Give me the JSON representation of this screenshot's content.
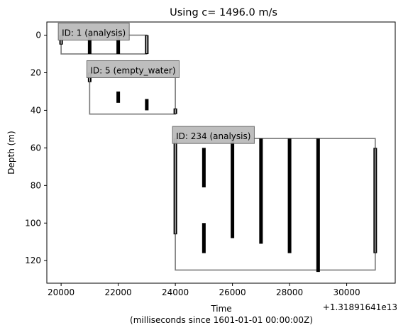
{
  "chart_data": {
    "type": "scatter",
    "title": "Using c= 1496.0 m/s",
    "xlabel": "Time",
    "xlabel_line2": "(milliseconds since 1601-01-01 00:00:00Z)",
    "x_offset_label": "+1.31891641e13",
    "ylabel": "Depth (m)",
    "xlim": [
      19500,
      31700
    ],
    "ylim": [
      132,
      -7
    ],
    "y_inverted": true,
    "grid": false,
    "x_ticks": [
      20000,
      22000,
      24000,
      26000,
      28000,
      30000
    ],
    "x_tick_labels": [
      "20000",
      "22000",
      "24000",
      "26000",
      "28000",
      "30000"
    ],
    "y_ticks": [
      0,
      20,
      40,
      60,
      80,
      100,
      120
    ],
    "y_tick_labels": [
      "0",
      "20",
      "40",
      "60",
      "80",
      "100",
      "120"
    ],
    "regions": [
      {
        "label": "ID: 1 (analysis)",
        "x_start": 20000,
        "x_end": 23000,
        "depth_top": 0,
        "depth_bottom": 10,
        "pings": [
          {
            "x": 20000,
            "depth_top": 0,
            "depth_bottom": 5
          },
          {
            "x": 21000,
            "depth_top": 0,
            "depth_bottom": 10
          },
          {
            "x": 22000,
            "depth_top": 0,
            "depth_bottom": 10
          },
          {
            "x": 23000,
            "depth_top": 0,
            "depth_bottom": 10
          }
        ]
      },
      {
        "label": "ID: 5 (empty_water)",
        "x_start": 21000,
        "x_end": 24000,
        "depth_top": 20,
        "depth_bottom": 42,
        "pings": [
          {
            "x": 21000,
            "depth_top": 20,
            "depth_bottom": 25
          },
          {
            "x": 22000,
            "depth_top": 30,
            "depth_bottom": 36
          },
          {
            "x": 23000,
            "depth_top": 34,
            "depth_bottom": 40
          },
          {
            "x": 24000,
            "depth_top": 39,
            "depth_bottom": 42
          }
        ]
      },
      {
        "label": "ID: 234 (analysis)",
        "x_start": 24000,
        "x_end": 31000,
        "depth_top": 55,
        "depth_bottom": 125,
        "pings": [
          {
            "x": 24000,
            "depth_top": 55,
            "depth_bottom": 106
          },
          {
            "x": 25000,
            "depth_top": 60,
            "depth_bottom": 81
          },
          {
            "x": 25000,
            "depth_top": 100,
            "depth_bottom": 116
          },
          {
            "x": 26000,
            "depth_top": 55,
            "depth_bottom": 108
          },
          {
            "x": 27000,
            "depth_top": 55,
            "depth_bottom": 111
          },
          {
            "x": 28000,
            "depth_top": 55,
            "depth_bottom": 116
          },
          {
            "x": 29000,
            "depth_top": 55,
            "depth_bottom": 126
          },
          {
            "x": 31000,
            "depth_top": 60,
            "depth_bottom": 116
          }
        ]
      }
    ],
    "colors": {
      "box_edge": "#777777",
      "label_bg": "#bbbbbb",
      "label_edge": "#666666",
      "ping": "#000000",
      "axes": "#000000"
    }
  }
}
